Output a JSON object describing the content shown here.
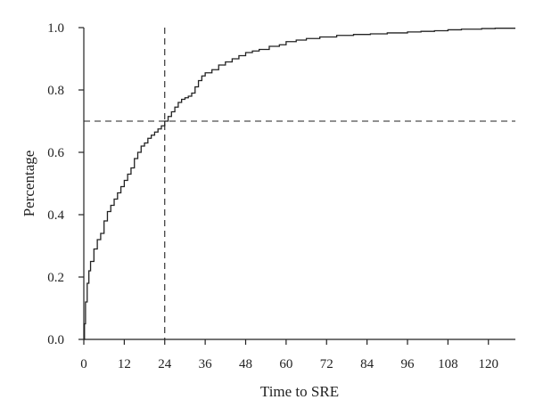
{
  "chart_data": {
    "type": "line",
    "title": "",
    "xlabel": "Time to SRE",
    "ylabel": "Percentage",
    "xlim": [
      0,
      128
    ],
    "ylim": [
      0,
      1.0
    ],
    "x_ticks": [
      0,
      12,
      24,
      36,
      48,
      60,
      72,
      84,
      96,
      108,
      120
    ],
    "y_ticks": [
      0.0,
      0.2,
      0.4,
      0.6,
      0.8,
      1.0
    ],
    "x_tick_labels": [
      "0",
      "12",
      "24",
      "36",
      "48",
      "60",
      "72",
      "84",
      "96",
      "108",
      "120"
    ],
    "y_tick_labels": [
      "0.0",
      "0.2",
      "0.4",
      "0.6",
      "0.8",
      "1.0"
    ],
    "grid": false,
    "reference_lines": [
      {
        "orientation": "vertical",
        "x": 24,
        "style": "dashed"
      },
      {
        "orientation": "horizontal",
        "y": 0.7,
        "style": "dashed"
      }
    ],
    "series": [
      {
        "line_color": "#222222",
        "step": true,
        "points": [
          [
            0,
            0.0
          ],
          [
            0.2,
            0.05
          ],
          [
            0.5,
            0.12
          ],
          [
            1,
            0.18
          ],
          [
            1.5,
            0.22
          ],
          [
            2,
            0.25
          ],
          [
            3,
            0.29
          ],
          [
            4,
            0.32
          ],
          [
            5,
            0.34
          ],
          [
            6,
            0.38
          ],
          [
            7,
            0.41
          ],
          [
            8,
            0.43
          ],
          [
            9,
            0.45
          ],
          [
            10,
            0.47
          ],
          [
            11,
            0.49
          ],
          [
            12,
            0.51
          ],
          [
            13,
            0.53
          ],
          [
            14,
            0.55
          ],
          [
            15,
            0.58
          ],
          [
            16,
            0.6
          ],
          [
            17,
            0.62
          ],
          [
            18,
            0.63
          ],
          [
            19,
            0.645
          ],
          [
            20,
            0.655
          ],
          [
            21,
            0.665
          ],
          [
            22,
            0.675
          ],
          [
            23,
            0.685
          ],
          [
            24,
            0.7
          ],
          [
            25,
            0.715
          ],
          [
            26,
            0.73
          ],
          [
            27,
            0.745
          ],
          [
            28,
            0.76
          ],
          [
            29,
            0.77
          ],
          [
            30,
            0.775
          ],
          [
            31,
            0.78
          ],
          [
            32,
            0.79
          ],
          [
            33,
            0.81
          ],
          [
            34,
            0.83
          ],
          [
            35,
            0.845
          ],
          [
            36,
            0.855
          ],
          [
            38,
            0.865
          ],
          [
            40,
            0.88
          ],
          [
            42,
            0.89
          ],
          [
            44,
            0.9
          ],
          [
            46,
            0.91
          ],
          [
            48,
            0.92
          ],
          [
            50,
            0.925
          ],
          [
            52,
            0.93
          ],
          [
            55,
            0.94
          ],
          [
            58,
            0.945
          ],
          [
            60,
            0.955
          ],
          [
            63,
            0.96
          ],
          [
            66,
            0.965
          ],
          [
            70,
            0.97
          ],
          [
            75,
            0.975
          ],
          [
            80,
            0.978
          ],
          [
            85,
            0.98
          ],
          [
            90,
            0.983
          ],
          [
            96,
            0.986
          ],
          [
            100,
            0.988
          ],
          [
            104,
            0.99
          ],
          [
            108,
            0.993
          ],
          [
            112,
            0.995
          ],
          [
            118,
            0.997
          ],
          [
            122,
            0.998
          ],
          [
            128,
            0.998
          ]
        ]
      }
    ]
  }
}
